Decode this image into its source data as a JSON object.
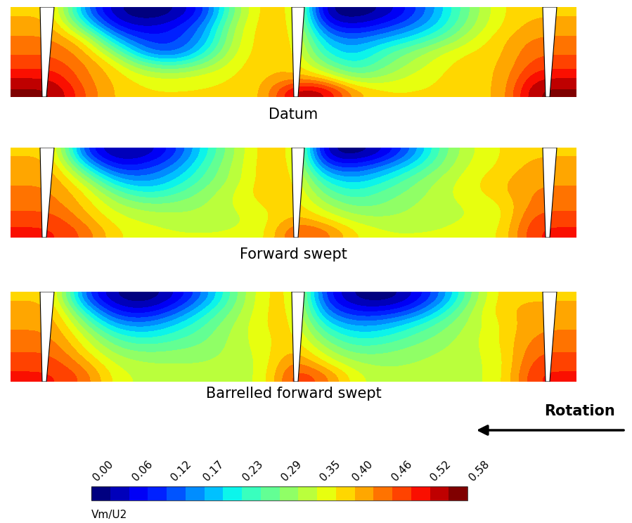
{
  "chart_data": {
    "type": "heatmap",
    "tick_labels": false,
    "annotation": "Rotation",
    "colorbar_label": "Vm/U2",
    "colorbar_range": [
      0,
      0.58
    ],
    "colorbar_ticks": [
      {
        "value": 0,
        "label": "0.00"
      },
      {
        "value": 0.06,
        "label": "0.06"
      },
      {
        "value": 0.12,
        "label": "0.12"
      },
      {
        "value": 0.17,
        "label": "0.17"
      },
      {
        "value": 0.23,
        "label": "0.23"
      },
      {
        "value": 0.29,
        "label": "0.29"
      },
      {
        "value": 0.35,
        "label": "0.35"
      },
      {
        "value": 0.4,
        "label": "0.40"
      },
      {
        "value": 0.46,
        "label": "0.46"
      },
      {
        "value": 0.52,
        "label": "0.52"
      },
      {
        "value": 0.58,
        "label": "0.58"
      }
    ],
    "panels": [
      {
        "title": "Datum",
        "cells": [
          [
            0.4,
            0.4,
            0.15,
            0.03,
            0.0,
            0.02,
            0.1,
            0.3,
            0.4,
            0.4,
            0.02,
            0.0,
            0.03,
            0.1,
            0.2,
            0.3,
            0.38,
            0.4,
            0.4
          ],
          [
            0.42,
            0.42,
            0.25,
            0.08,
            0.05,
            0.08,
            0.15,
            0.33,
            0.4,
            0.4,
            0.1,
            0.06,
            0.1,
            0.15,
            0.22,
            0.32,
            0.38,
            0.42,
            0.42
          ],
          [
            0.44,
            0.44,
            0.38,
            0.18,
            0.1,
            0.1,
            0.17,
            0.34,
            0.4,
            0.4,
            0.18,
            0.14,
            0.18,
            0.22,
            0.28,
            0.35,
            0.4,
            0.44,
            0.44
          ],
          [
            0.46,
            0.46,
            0.42,
            0.3,
            0.15,
            0.12,
            0.22,
            0.35,
            0.4,
            0.4,
            0.23,
            0.18,
            0.25,
            0.3,
            0.35,
            0.38,
            0.4,
            0.46,
            0.46
          ],
          [
            0.48,
            0.48,
            0.44,
            0.38,
            0.28,
            0.25,
            0.3,
            0.37,
            0.4,
            0.4,
            0.3,
            0.22,
            0.28,
            0.33,
            0.37,
            0.4,
            0.4,
            0.48,
            0.48
          ],
          [
            0.52,
            0.52,
            0.44,
            0.4,
            0.36,
            0.35,
            0.37,
            0.38,
            0.4,
            0.42,
            0.4,
            0.3,
            0.32,
            0.36,
            0.38,
            0.4,
            0.4,
            0.52,
            0.52
          ],
          [
            0.56,
            0.56,
            0.46,
            0.4,
            0.38,
            0.38,
            0.38,
            0.38,
            0.4,
            0.55,
            0.55,
            0.42,
            0.38,
            0.38,
            0.38,
            0.4,
            0.4,
            0.56,
            0.56
          ]
        ]
      },
      {
        "title": "Forward swept",
        "cells": [
          [
            0.4,
            0.4,
            0.1,
            0.02,
            0.03,
            0.1,
            0.22,
            0.32,
            0.4,
            0.4,
            0.03,
            0.0,
            0.05,
            0.15,
            0.28,
            0.35,
            0.38,
            0.4,
            0.4
          ],
          [
            0.42,
            0.42,
            0.22,
            0.08,
            0.1,
            0.15,
            0.25,
            0.33,
            0.4,
            0.4,
            0.12,
            0.1,
            0.15,
            0.22,
            0.3,
            0.36,
            0.38,
            0.42,
            0.42
          ],
          [
            0.43,
            0.43,
            0.33,
            0.18,
            0.15,
            0.2,
            0.27,
            0.33,
            0.4,
            0.4,
            0.22,
            0.18,
            0.22,
            0.28,
            0.33,
            0.37,
            0.4,
            0.43,
            0.43
          ],
          [
            0.44,
            0.44,
            0.38,
            0.28,
            0.22,
            0.25,
            0.3,
            0.35,
            0.4,
            0.4,
            0.28,
            0.23,
            0.27,
            0.3,
            0.34,
            0.37,
            0.4,
            0.44,
            0.44
          ],
          [
            0.45,
            0.45,
            0.4,
            0.33,
            0.3,
            0.3,
            0.32,
            0.35,
            0.38,
            0.4,
            0.33,
            0.28,
            0.29,
            0.32,
            0.34,
            0.35,
            0.37,
            0.45,
            0.45
          ],
          [
            0.48,
            0.48,
            0.42,
            0.36,
            0.34,
            0.33,
            0.33,
            0.34,
            0.36,
            0.42,
            0.38,
            0.33,
            0.32,
            0.33,
            0.34,
            0.35,
            0.36,
            0.48,
            0.48
          ],
          [
            0.5,
            0.5,
            0.46,
            0.38,
            0.36,
            0.35,
            0.35,
            0.35,
            0.36,
            0.48,
            0.46,
            0.38,
            0.35,
            0.35,
            0.35,
            0.36,
            0.37,
            0.5,
            0.5
          ]
        ]
      },
      {
        "title": "Barrelled forward swept",
        "cells": [
          [
            0.4,
            0.4,
            0.12,
            0.02,
            0.0,
            0.05,
            0.15,
            0.28,
            0.38,
            0.4,
            0.1,
            0.02,
            0.0,
            0.05,
            0.15,
            0.3,
            0.4,
            0.4,
            0.4
          ],
          [
            0.42,
            0.42,
            0.22,
            0.08,
            0.06,
            0.12,
            0.22,
            0.3,
            0.38,
            0.4,
            0.15,
            0.08,
            0.08,
            0.12,
            0.22,
            0.33,
            0.4,
            0.42,
            0.42
          ],
          [
            0.43,
            0.43,
            0.3,
            0.17,
            0.15,
            0.2,
            0.26,
            0.32,
            0.38,
            0.4,
            0.22,
            0.16,
            0.17,
            0.22,
            0.28,
            0.33,
            0.38,
            0.43,
            0.43
          ],
          [
            0.44,
            0.44,
            0.35,
            0.25,
            0.22,
            0.25,
            0.28,
            0.33,
            0.37,
            0.4,
            0.28,
            0.22,
            0.23,
            0.27,
            0.3,
            0.34,
            0.38,
            0.44,
            0.44
          ],
          [
            0.46,
            0.46,
            0.38,
            0.3,
            0.28,
            0.29,
            0.3,
            0.33,
            0.36,
            0.42,
            0.33,
            0.27,
            0.28,
            0.3,
            0.32,
            0.34,
            0.37,
            0.46,
            0.46
          ],
          [
            0.48,
            0.48,
            0.42,
            0.34,
            0.32,
            0.32,
            0.32,
            0.33,
            0.35,
            0.46,
            0.38,
            0.32,
            0.31,
            0.32,
            0.33,
            0.34,
            0.36,
            0.48,
            0.48
          ],
          [
            0.5,
            0.5,
            0.46,
            0.36,
            0.34,
            0.33,
            0.33,
            0.33,
            0.35,
            0.5,
            0.46,
            0.36,
            0.33,
            0.33,
            0.33,
            0.34,
            0.36,
            0.5,
            0.5
          ]
        ]
      }
    ]
  }
}
